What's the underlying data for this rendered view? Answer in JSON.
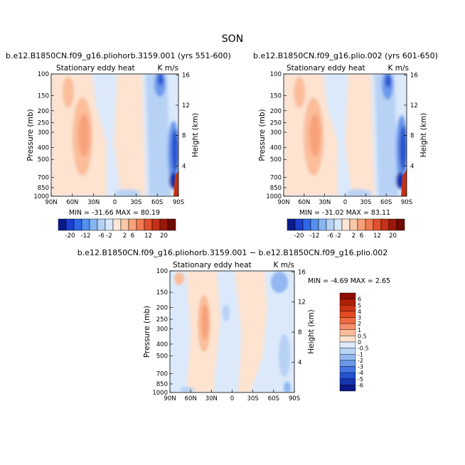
{
  "page_title": "SON",
  "chart_data": [
    {
      "type": "heatmap",
      "title": "b.e12.B1850CN.f09_g16.pliohorb.3159.001 (yrs 551-600)",
      "subtitle_left": "Stationary eddy heat",
      "units": "K m/s",
      "ylabel": "Pressure (mb)",
      "ylabel_right": "Height (km)",
      "x_ticks": [
        "90N",
        "60N",
        "30N",
        "0",
        "30S",
        "60S",
        "90S"
      ],
      "y_ticks": [
        "100",
        "150",
        "200",
        "250",
        "300",
        "400",
        "500",
        "700",
        "850",
        "1000"
      ],
      "y_ticks_right": [
        "16",
        "12",
        "8",
        "4"
      ],
      "stats": "MIN = -31.66   MAX =  80.19",
      "min": -31.66,
      "max": 80.19
    },
    {
      "type": "heatmap",
      "title": "b.e12.B1850CN.f09_g16.plio.002 (yrs 601-650)",
      "subtitle_left": "Stationary eddy heat",
      "units": "K m/s",
      "ylabel": "Pressure (mb)",
      "ylabel_right": "Height (km)",
      "x_ticks": [
        "90N",
        "60N",
        "30N",
        "0",
        "30S",
        "60S",
        "90S"
      ],
      "y_ticks": [
        "100",
        "150",
        "200",
        "250",
        "300",
        "400",
        "500",
        "700",
        "850",
        "1000"
      ],
      "y_ticks_right": [
        "16",
        "12",
        "8",
        "4"
      ],
      "stats": "MIN = -31.02   MAX =  83.11",
      "min": -31.02,
      "max": 83.11
    },
    {
      "type": "heatmap",
      "title": "b.e12.B1850CN.f09_g16.pliohorb.3159.001 − b.e12.B1850CN.f09_g16.plio.002",
      "subtitle_left": "Stationary eddy heat",
      "units": "K m/s",
      "ylabel": "Pressure (mb)",
      "ylabel_right": "Height (km)",
      "x_ticks": [
        "90N",
        "60N",
        "30N",
        "0",
        "30S",
        "60S",
        "90S"
      ],
      "y_ticks": [
        "100",
        "150",
        "200",
        "250",
        "300",
        "400",
        "500",
        "700",
        "850",
        "1000"
      ],
      "y_ticks_right": [
        "16",
        "12",
        "8",
        "4"
      ],
      "stats": "MIN =  -4.69   MAX =   2.65",
      "min": -4.69,
      "max": 2.65
    }
  ],
  "colorbar_top": {
    "labels": [
      "-20",
      "-12",
      "-6",
      "-2",
      "2",
      "6",
      "12",
      "20"
    ],
    "colors": [
      "#0a1a8c",
      "#1a3fd0",
      "#2f66e8",
      "#5590ee",
      "#86b6f2",
      "#b4d1f6",
      "#d8e8fa",
      "#fce6d6",
      "#fbc8a8",
      "#f7a27a",
      "#f07a52",
      "#e0502e",
      "#c43018",
      "#9a1808",
      "#6e0a00"
    ]
  },
  "colorbar_diff": {
    "labels": [
      "6",
      "5",
      "4",
      "3",
      "2",
      "1",
      "0.5",
      "0",
      "-0.5",
      "-1",
      "-2",
      "-3",
      "-4",
      "-5",
      "-6"
    ],
    "colors": [
      "#8e0c00",
      "#b01e06",
      "#cc3212",
      "#e24a24",
      "#f06a40",
      "#f6906a",
      "#fbbd9a",
      "#fde3d0",
      "#dbe9fb",
      "#b8d2f6",
      "#93b8f1",
      "#6a98ea",
      "#4476e2",
      "#2552cf",
      "#1633b0",
      "#0a1a88"
    ]
  }
}
